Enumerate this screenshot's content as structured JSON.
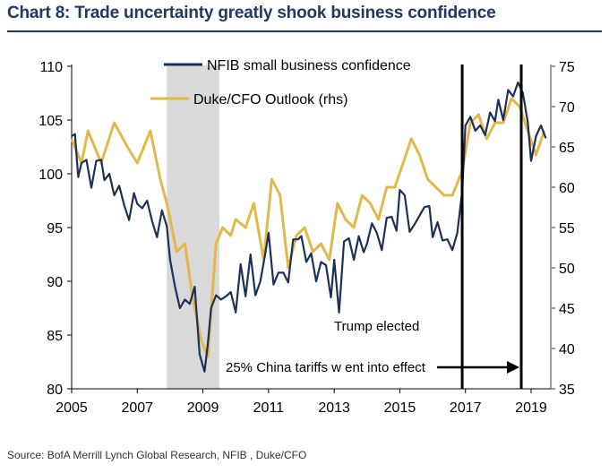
{
  "title": "Chart 8: Trade uncertainty greatly shook business confidence",
  "source": "Source:  BofA Merrill Lynch Global Research, NFIB , Duke/CFO",
  "colors": {
    "nfib": "#1b3158",
    "duke": "#e3b84a",
    "recession": "#d9d9d9",
    "title": "#1f3864",
    "marker": "#000000"
  },
  "chart_data": {
    "type": "line",
    "x_ticks": [
      "2005",
      "2007",
      "2009",
      "2011",
      "2013",
      "2015",
      "2017",
      "2019"
    ],
    "x_tick_values": [
      2005,
      2007,
      2009,
      2011,
      2013,
      2015,
      2017,
      2019
    ],
    "xlim": [
      2005,
      2019.6
    ],
    "y_left": {
      "ticks": [
        "80",
        "85",
        "90",
        "95",
        "100",
        "105",
        "110"
      ],
      "tick_values": [
        80,
        85,
        90,
        95,
        100,
        105,
        110
      ],
      "ylim": [
        80,
        110
      ]
    },
    "y_right": {
      "ticks": [
        "35",
        "40",
        "45",
        "50",
        "55",
        "60",
        "65",
        "70",
        "75"
      ],
      "tick_values": [
        35,
        40,
        45,
        50,
        55,
        60,
        65,
        70,
        75
      ],
      "ylim": [
        35,
        75
      ]
    },
    "legend": [
      "NFIB small business confidence",
      "Duke/CFO Outlook (rhs)"
    ],
    "recession_band": [
      2007.9,
      2009.5
    ],
    "vertical_lines": [
      2016.9,
      2018.7
    ],
    "annotations": {
      "trump": {
        "text": "Trump  elected",
        "x": 2016.9
      },
      "tariffs": {
        "text": "25% China tariffs w ent into effect",
        "x_from": 2016.9,
        "x_to": 2018.7
      }
    },
    "series": [
      {
        "name": "NFIB small business confidence",
        "axis": "left",
        "x": [
          2005.0,
          2005.1,
          2005.2,
          2005.3,
          2005.45,
          2005.6,
          2005.75,
          2005.9,
          2006.0,
          2006.15,
          2006.3,
          2006.45,
          2006.6,
          2006.75,
          2006.9,
          2007.0,
          2007.15,
          2007.3,
          2007.45,
          2007.6,
          2007.75,
          2007.9,
          2008.0,
          2008.15,
          2008.3,
          2008.45,
          2008.6,
          2008.75,
          2008.9,
          2009.05,
          2009.15,
          2009.25,
          2009.4,
          2009.55,
          2009.7,
          2009.85,
          2010.0,
          2010.15,
          2010.3,
          2010.45,
          2010.6,
          2010.75,
          2010.9,
          2011.0,
          2011.15,
          2011.3,
          2011.45,
          2011.6,
          2011.75,
          2011.9,
          2012.0,
          2012.15,
          2012.3,
          2012.45,
          2012.6,
          2012.75,
          2012.9,
          2013.0,
          2013.15,
          2013.3,
          2013.45,
          2013.6,
          2013.75,
          2013.9,
          2014.0,
          2014.15,
          2014.3,
          2014.45,
          2014.6,
          2014.75,
          2014.9,
          2015.0,
          2015.15,
          2015.3,
          2015.45,
          2015.6,
          2015.75,
          2015.9,
          2016.0,
          2016.15,
          2016.3,
          2016.45,
          2016.6,
          2016.75,
          2016.9,
          2017.0,
          2017.15,
          2017.3,
          2017.45,
          2017.6,
          2017.75,
          2017.9,
          2018.0,
          2018.15,
          2018.3,
          2018.45,
          2018.6,
          2018.75,
          2018.9,
          2019.0,
          2019.15,
          2019.3,
          2019.45
        ],
        "values": [
          103.5,
          103.7,
          99.7,
          101.0,
          101.3,
          98.7,
          101.2,
          101.3,
          99.4,
          100.0,
          98.0,
          98.9,
          97.1,
          95.7,
          98.2,
          97.2,
          96.8,
          97.5,
          95.6,
          94.1,
          96.6,
          95.1,
          92.0,
          89.5,
          87.5,
          88.3,
          87.9,
          89.5,
          83.2,
          81.6,
          84.2,
          87.5,
          88.7,
          88.3,
          88.6,
          89.0,
          87.1,
          91.6,
          88.6,
          92.5,
          88.7,
          90.0,
          92.6,
          94.5,
          89.7,
          90.8,
          90.8,
          89.9,
          93.9,
          93.9,
          94.2,
          91.8,
          92.6,
          90.0,
          91.8,
          91.5,
          88.5,
          92.0,
          87.1,
          93.7,
          94.0,
          92.0,
          94.2,
          92.7,
          93.5,
          95.4,
          94.5,
          92.9,
          95.9,
          96.0,
          94.7,
          98.5,
          98.0,
          94.6,
          95.3,
          96.1,
          96.9,
          97.0,
          94.1,
          95.5,
          93.8,
          93.9,
          92.9,
          94.5,
          98.4,
          104.5,
          105.3,
          104.0,
          104.5,
          103.6,
          105.7,
          104.9,
          106.9,
          105.0,
          107.8,
          107.2,
          108.5,
          107.5,
          104.8,
          101.2,
          103.5,
          104.5,
          103.3
        ]
      },
      {
        "name": "Duke/CFO Outlook (rhs)",
        "axis": "right",
        "x": [
          2005.0,
          2005.3,
          2005.5,
          2005.9,
          2006.3,
          2006.7,
          2007.0,
          2007.4,
          2007.7,
          2007.9,
          2008.2,
          2008.45,
          2008.7,
          2008.95,
          2009.15,
          2009.4,
          2009.6,
          2009.85,
          2010.0,
          2010.3,
          2010.55,
          2010.85,
          2011.1,
          2011.35,
          2011.6,
          2011.85,
          2012.1,
          2012.35,
          2012.6,
          2012.85,
          2013.1,
          2013.35,
          2013.6,
          2013.85,
          2014.1,
          2014.35,
          2014.6,
          2014.85,
          2015.1,
          2015.35,
          2015.6,
          2015.85,
          2016.1,
          2016.35,
          2016.6,
          2016.9,
          2017.15,
          2017.4,
          2017.65,
          2017.9,
          2018.15,
          2018.4,
          2018.65,
          2018.9,
          2019.15,
          2019.4
        ],
        "values": [
          66,
          63,
          67,
          63,
          68,
          65,
          63,
          67,
          61,
          58,
          52,
          53,
          46,
          41,
          39,
          53,
          55,
          54,
          56,
          55,
          58,
          51,
          61,
          59,
          50,
          54,
          55,
          52,
          53,
          51,
          58,
          56,
          55,
          59,
          58,
          56,
          60,
          60,
          63,
          66,
          64,
          61,
          60,
          59,
          59,
          62,
          68,
          69,
          66,
          68,
          68,
          71,
          70,
          67,
          64,
          67
        ]
      }
    ]
  }
}
